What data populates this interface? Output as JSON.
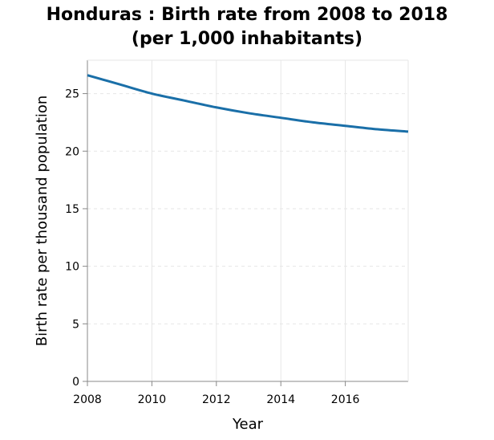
{
  "chart_data": {
    "type": "line",
    "title": "Honduras : Birth rate from 2008 to 2018",
    "subtitle": "(per 1,000 inhabitants)",
    "xlabel": "Year",
    "ylabel": "Birth rate per thousand population",
    "x": [
      2008,
      2009,
      2010,
      2011,
      2012,
      2013,
      2014,
      2015,
      2016,
      2017,
      2018
    ],
    "series": [
      {
        "values": [
          26.6,
          25.8,
          25.0,
          24.4,
          23.8,
          23.3,
          22.9,
          22.5,
          22.2,
          21.9,
          21.7
        ],
        "color": "#1a6fa8"
      }
    ],
    "xlim": [
      2008,
      2018
    ],
    "ylim": [
      0,
      25
    ],
    "x_ticks": [
      2008,
      2010,
      2012,
      2014,
      2016
    ],
    "y_ticks": [
      0,
      5,
      10,
      15,
      20,
      25
    ],
    "grid": true,
    "grid_color": "#e6e6e6",
    "axis_color": "#888888"
  }
}
